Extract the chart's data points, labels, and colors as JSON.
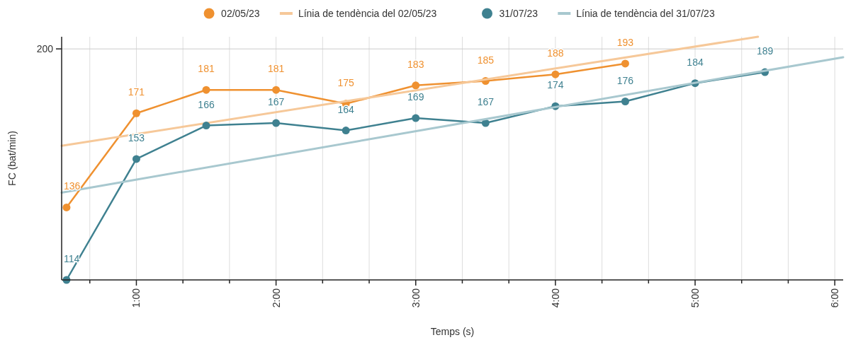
{
  "chart_data": {
    "type": "line",
    "xlabel": "Temps (s)",
    "ylabel": "FC (bat/min)",
    "log": "y",
    "grid": true,
    "legend": "top",
    "x": [
      0.5,
      1,
      1.5,
      2,
      2.5,
      3,
      3.5,
      4,
      4.5,
      5,
      5.5
    ],
    "xlim": [
      0.465,
      6.06
    ],
    "xticks": [
      {
        "value": 0.6667,
        "label": null
      },
      {
        "value": 1,
        "label": "1:00"
      },
      {
        "value": 1.3333,
        "label": null
      },
      {
        "value": 1.6667,
        "label": null
      },
      {
        "value": 2,
        "label": "2:00"
      },
      {
        "value": 2.3333,
        "label": null
      },
      {
        "value": 2.6667,
        "label": null
      },
      {
        "value": 3,
        "label": "3:00"
      },
      {
        "value": 3.3333,
        "label": null
      },
      {
        "value": 3.6667,
        "label": null
      },
      {
        "value": 4,
        "label": "4:00"
      },
      {
        "value": 4.3333,
        "label": null
      },
      {
        "value": 4.6667,
        "label": null
      },
      {
        "value": 5,
        "label": "5:00"
      },
      {
        "value": 5.3333,
        "label": null
      },
      {
        "value": 5.6667,
        "label": null
      },
      {
        "value": 6,
        "label": "6:00"
      }
    ],
    "ylim": [
      114,
      206
    ],
    "ref_lines": [
      {
        "axis": "y",
        "value": 200,
        "label": "200",
        "color": "#cccccc"
      }
    ],
    "series": [
      {
        "name": "02/05/23",
        "color": "#ef9130",
        "marker": "circle",
        "x": [
          0.5,
          1,
          1.5,
          2,
          2.5,
          3,
          3.5,
          4,
          4.5
        ],
        "values": [
          136,
          171,
          181,
          181,
          175,
          183,
          185,
          188,
          193
        ],
        "value_labels": [
          "136",
          "171",
          "181",
          "181",
          "175",
          "183",
          "185",
          "188",
          "193"
        ]
      },
      {
        "name": "Línia de tendència del 02/05/23",
        "type": "line",
        "color": "#f6c899",
        "marker": "none",
        "x": [
          0.465,
          5.45
        ],
        "values": [
          158,
          206
        ]
      },
      {
        "name": "31/07/23",
        "color": "#3f8190",
        "marker": "circle",
        "values": [
          114,
          153,
          166,
          167,
          164,
          169,
          167,
          174,
          176,
          184,
          189
        ],
        "value_labels": [
          "114",
          "153",
          "166",
          "167",
          "164",
          "169",
          "167",
          "174",
          "176",
          "184",
          "189"
        ]
      },
      {
        "name": "Línia de tendència del 31/07/23",
        "type": "line",
        "color": "#a8c8cf",
        "marker": "none",
        "x": [
          0.465,
          6.06
        ],
        "values": [
          141,
          196
        ]
      }
    ]
  }
}
